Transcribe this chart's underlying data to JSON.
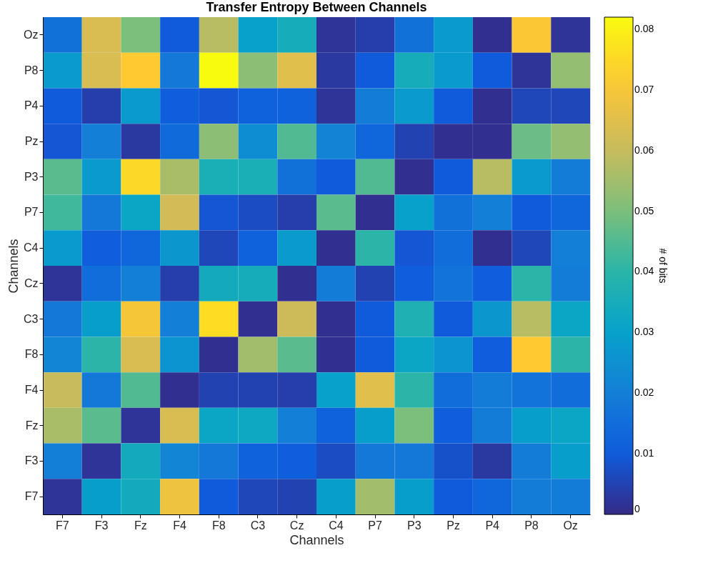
{
  "chart_data": {
    "type": "heatmap",
    "title": "Transfer Entropy Between Channels",
    "xlabel": "Channels",
    "ylabel": "Channels",
    "clabel": "# of bits",
    "categories": [
      "F7",
      "F3",
      "Fz",
      "F4",
      "F8",
      "C3",
      "Cz",
      "C4",
      "P7",
      "P3",
      "Pz",
      "P4",
      "P8",
      "Oz"
    ],
    "y_categories": [
      "Oz",
      "P8",
      "P4",
      "Pz",
      "P3",
      "P7",
      "C4",
      "Cz",
      "C3",
      "F8",
      "F4",
      "Fz",
      "F3",
      "F7"
    ],
    "cells": [
      [
        0.016,
        0.063,
        0.05,
        0.01,
        0.058,
        0.03,
        0.035,
        0.002,
        0.004,
        0.016,
        0.028,
        0.001,
        0.071,
        0.002
      ],
      [
        0.028,
        0.063,
        0.072,
        0.018,
        0.082,
        0.052,
        0.065,
        0.003,
        0.01,
        0.035,
        0.028,
        0.01,
        0.002,
        0.053
      ],
      [
        0.01,
        0.004,
        0.028,
        0.011,
        0.009,
        0.012,
        0.012,
        0.002,
        0.019,
        0.028,
        0.01,
        0.001,
        0.006,
        0.006
      ],
      [
        0.009,
        0.02,
        0.003,
        0.014,
        0.052,
        0.024,
        0.045,
        0.021,
        0.013,
        0.005,
        0.001,
        0.001,
        0.048,
        0.053
      ],
      [
        0.046,
        0.028,
        0.075,
        0.056,
        0.036,
        0.036,
        0.016,
        0.01,
        0.045,
        0.001,
        0.01,
        0.058,
        0.028,
        0.019
      ],
      [
        0.043,
        0.018,
        0.032,
        0.062,
        0.009,
        0.007,
        0.004,
        0.046,
        0.001,
        0.03,
        0.016,
        0.02,
        0.01,
        0.013
      ],
      [
        0.028,
        0.011,
        0.013,
        0.027,
        0.006,
        0.012,
        0.028,
        0.001,
        0.04,
        0.009,
        0.015,
        0.001,
        0.006,
        0.02
      ],
      [
        0.002,
        0.015,
        0.02,
        0.004,
        0.034,
        0.035,
        0.001,
        0.019,
        0.005,
        0.011,
        0.017,
        0.011,
        0.04,
        0.019
      ],
      [
        0.018,
        0.029,
        0.07,
        0.02,
        0.076,
        0.001,
        0.061,
        0.001,
        0.01,
        0.037,
        0.01,
        0.027,
        0.058,
        0.032
      ],
      [
        0.022,
        0.04,
        0.063,
        0.026,
        0.001,
        0.055,
        0.046,
        0.001,
        0.01,
        0.032,
        0.026,
        0.011,
        0.072,
        0.04
      ],
      [
        0.06,
        0.018,
        0.045,
        0.001,
        0.005,
        0.005,
        0.004,
        0.03,
        0.065,
        0.04,
        0.015,
        0.019,
        0.017,
        0.015
      ],
      [
        0.056,
        0.046,
        0.002,
        0.063,
        0.032,
        0.033,
        0.02,
        0.012,
        0.029,
        0.05,
        0.011,
        0.019,
        0.029,
        0.032
      ],
      [
        0.02,
        0.002,
        0.034,
        0.022,
        0.018,
        0.012,
        0.011,
        0.007,
        0.018,
        0.018,
        0.008,
        0.003,
        0.019,
        0.029
      ],
      [
        0.002,
        0.029,
        0.034,
        0.068,
        0.01,
        0.006,
        0.005,
        0.029,
        0.055,
        0.029,
        0.01,
        0.013,
        0.019,
        0.019
      ]
    ],
    "clim": [
      0,
      0.082
    ],
    "cticks": [
      0,
      0.01,
      0.02,
      0.03,
      0.04,
      0.05,
      0.06,
      0.07,
      0.08
    ]
  }
}
